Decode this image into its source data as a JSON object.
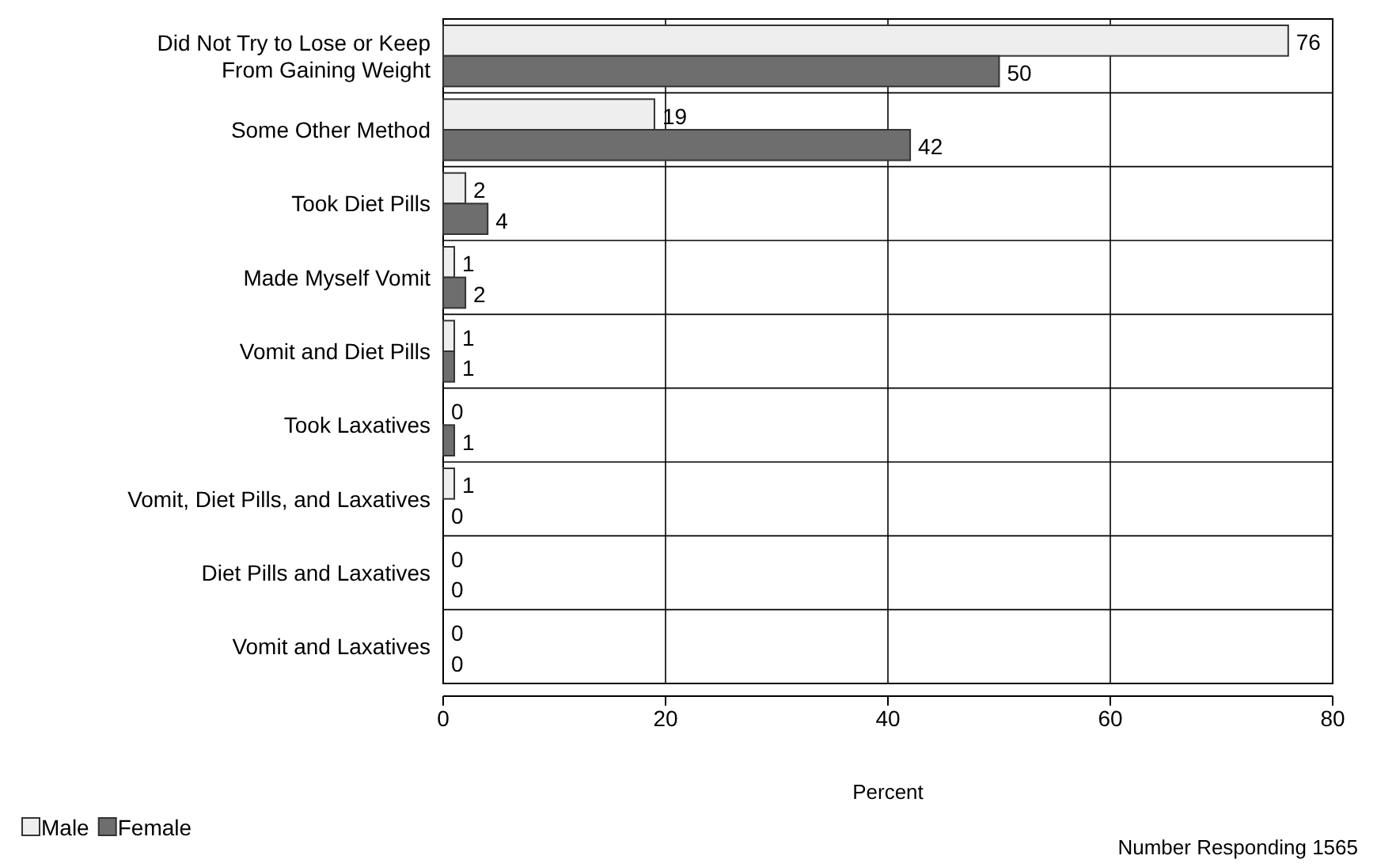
{
  "chart_data": {
    "type": "bar",
    "orientation": "horizontal",
    "xlabel": "Percent",
    "categories": [
      "Did Not Try to Lose or Keep\nFrom Gaining Weight",
      "Some Other Method",
      "Took Diet Pills",
      "Made Myself Vomit",
      "Vomit and Diet Pills",
      "Took Laxatives",
      "Vomit, Diet Pills, and Laxatives",
      "Diet Pills and Laxatives",
      "Vomit and Laxatives"
    ],
    "series": [
      {
        "name": "Male",
        "color": "#eeeeee",
        "values": [
          76,
          19,
          2,
          1,
          1,
          0,
          1,
          0,
          0
        ]
      },
      {
        "name": "Female",
        "color": "#6e6e6e",
        "values": [
          50,
          42,
          4,
          2,
          1,
          1,
          0,
          0,
          0
        ]
      }
    ],
    "xlim": [
      0,
      80
    ],
    "xticks": [
      0,
      20,
      40,
      60,
      80
    ],
    "grid": "x",
    "legend": "bottom left",
    "data_labels": true,
    "annotations": [
      "Number Responding  1565"
    ]
  }
}
